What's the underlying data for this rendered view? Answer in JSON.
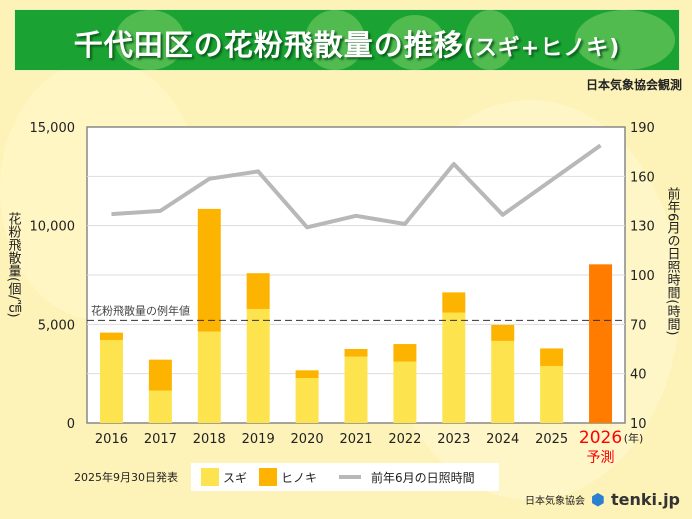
{
  "header": {
    "title": "千代田区の花粉飛散量の推移",
    "title_suffix": "(スギ+ヒノキ)",
    "observer": "日本気象協会観測"
  },
  "chart_data": {
    "type": "bar",
    "title": "千代田区の花粉飛散量の推移(スギ+ヒノキ)",
    "categories": [
      "2016",
      "2017",
      "2018",
      "2019",
      "2020",
      "2021",
      "2022",
      "2023",
      "2024",
      "2025",
      "2026"
    ],
    "x_unit": "(年)",
    "forecast_label": "予測",
    "ylabel": "花粉飛散量(個/㎠)",
    "y2label": "前年6月の日照時間(時間)",
    "ylim": [
      0,
      15000
    ],
    "y_ticks": [
      "0",
      "5,000",
      "10,000",
      "15,000"
    ],
    "y2lim": [
      10,
      190
    ],
    "y2_ticks": [
      "10",
      "40",
      "70",
      "100",
      "130",
      "160",
      "190"
    ],
    "series": [
      {
        "name": "スギ",
        "type": "bar",
        "color": "#fde44e",
        "values": [
          4200,
          1640,
          4630,
          5780,
          2280,
          3360,
          3110,
          5590,
          4160,
          2890,
          null
        ]
      },
      {
        "name": "ヒノキ",
        "type": "bar",
        "color": "#fdb400",
        "values": [
          380,
          1570,
          6220,
          1810,
          390,
          390,
          890,
          1030,
          810,
          890,
          null
        ]
      },
      {
        "name": "予測",
        "type": "bar",
        "color": "#ff7c00",
        "values": [
          null,
          null,
          null,
          null,
          null,
          null,
          null,
          null,
          null,
          null,
          8040
        ]
      },
      {
        "name": "前年6月の日照時間",
        "type": "line",
        "axis": "right",
        "color": "#b8b8b8",
        "values": [
          137,
          139,
          158.5,
          163,
          129,
          136,
          131,
          167.5,
          136.6,
          157.7,
          178.8
        ]
      }
    ],
    "reference_line": {
      "label": "花粉飛散量の例年値",
      "value": 5200
    }
  },
  "legend": {
    "sugi": "スギ",
    "hinoki": "ヒノキ",
    "sunshine": "前年6月の日照時間"
  },
  "published": "2025年9月30日発表",
  "footer": {
    "org": "日本気象協会",
    "brand": "tenki.jp"
  }
}
